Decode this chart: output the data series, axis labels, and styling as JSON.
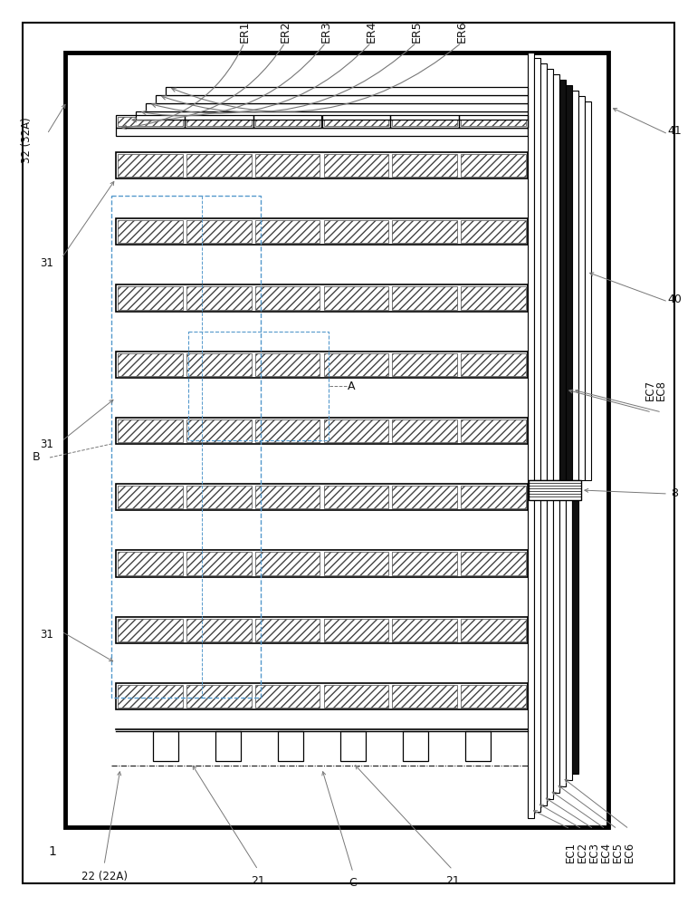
{
  "bg_color": "#ffffff",
  "lc": "#000000",
  "hc": "#444444",
  "ac": "#777777",
  "labels_top": [
    "ER1",
    "ER2",
    "ER3",
    "ER4",
    "ER5",
    "ER6"
  ],
  "labels_right_upper": [
    "41",
    "40",
    "EC7 EC8",
    "8"
  ],
  "labels_right_lower": [
    "EC6",
    "EC5",
    "EC4",
    "EC3",
    "EC2",
    "EC1"
  ],
  "n_electrode_rows": 9,
  "n_segs_per_row": 6,
  "hatch_pattern": "////",
  "dashed_blue": "#5599cc"
}
